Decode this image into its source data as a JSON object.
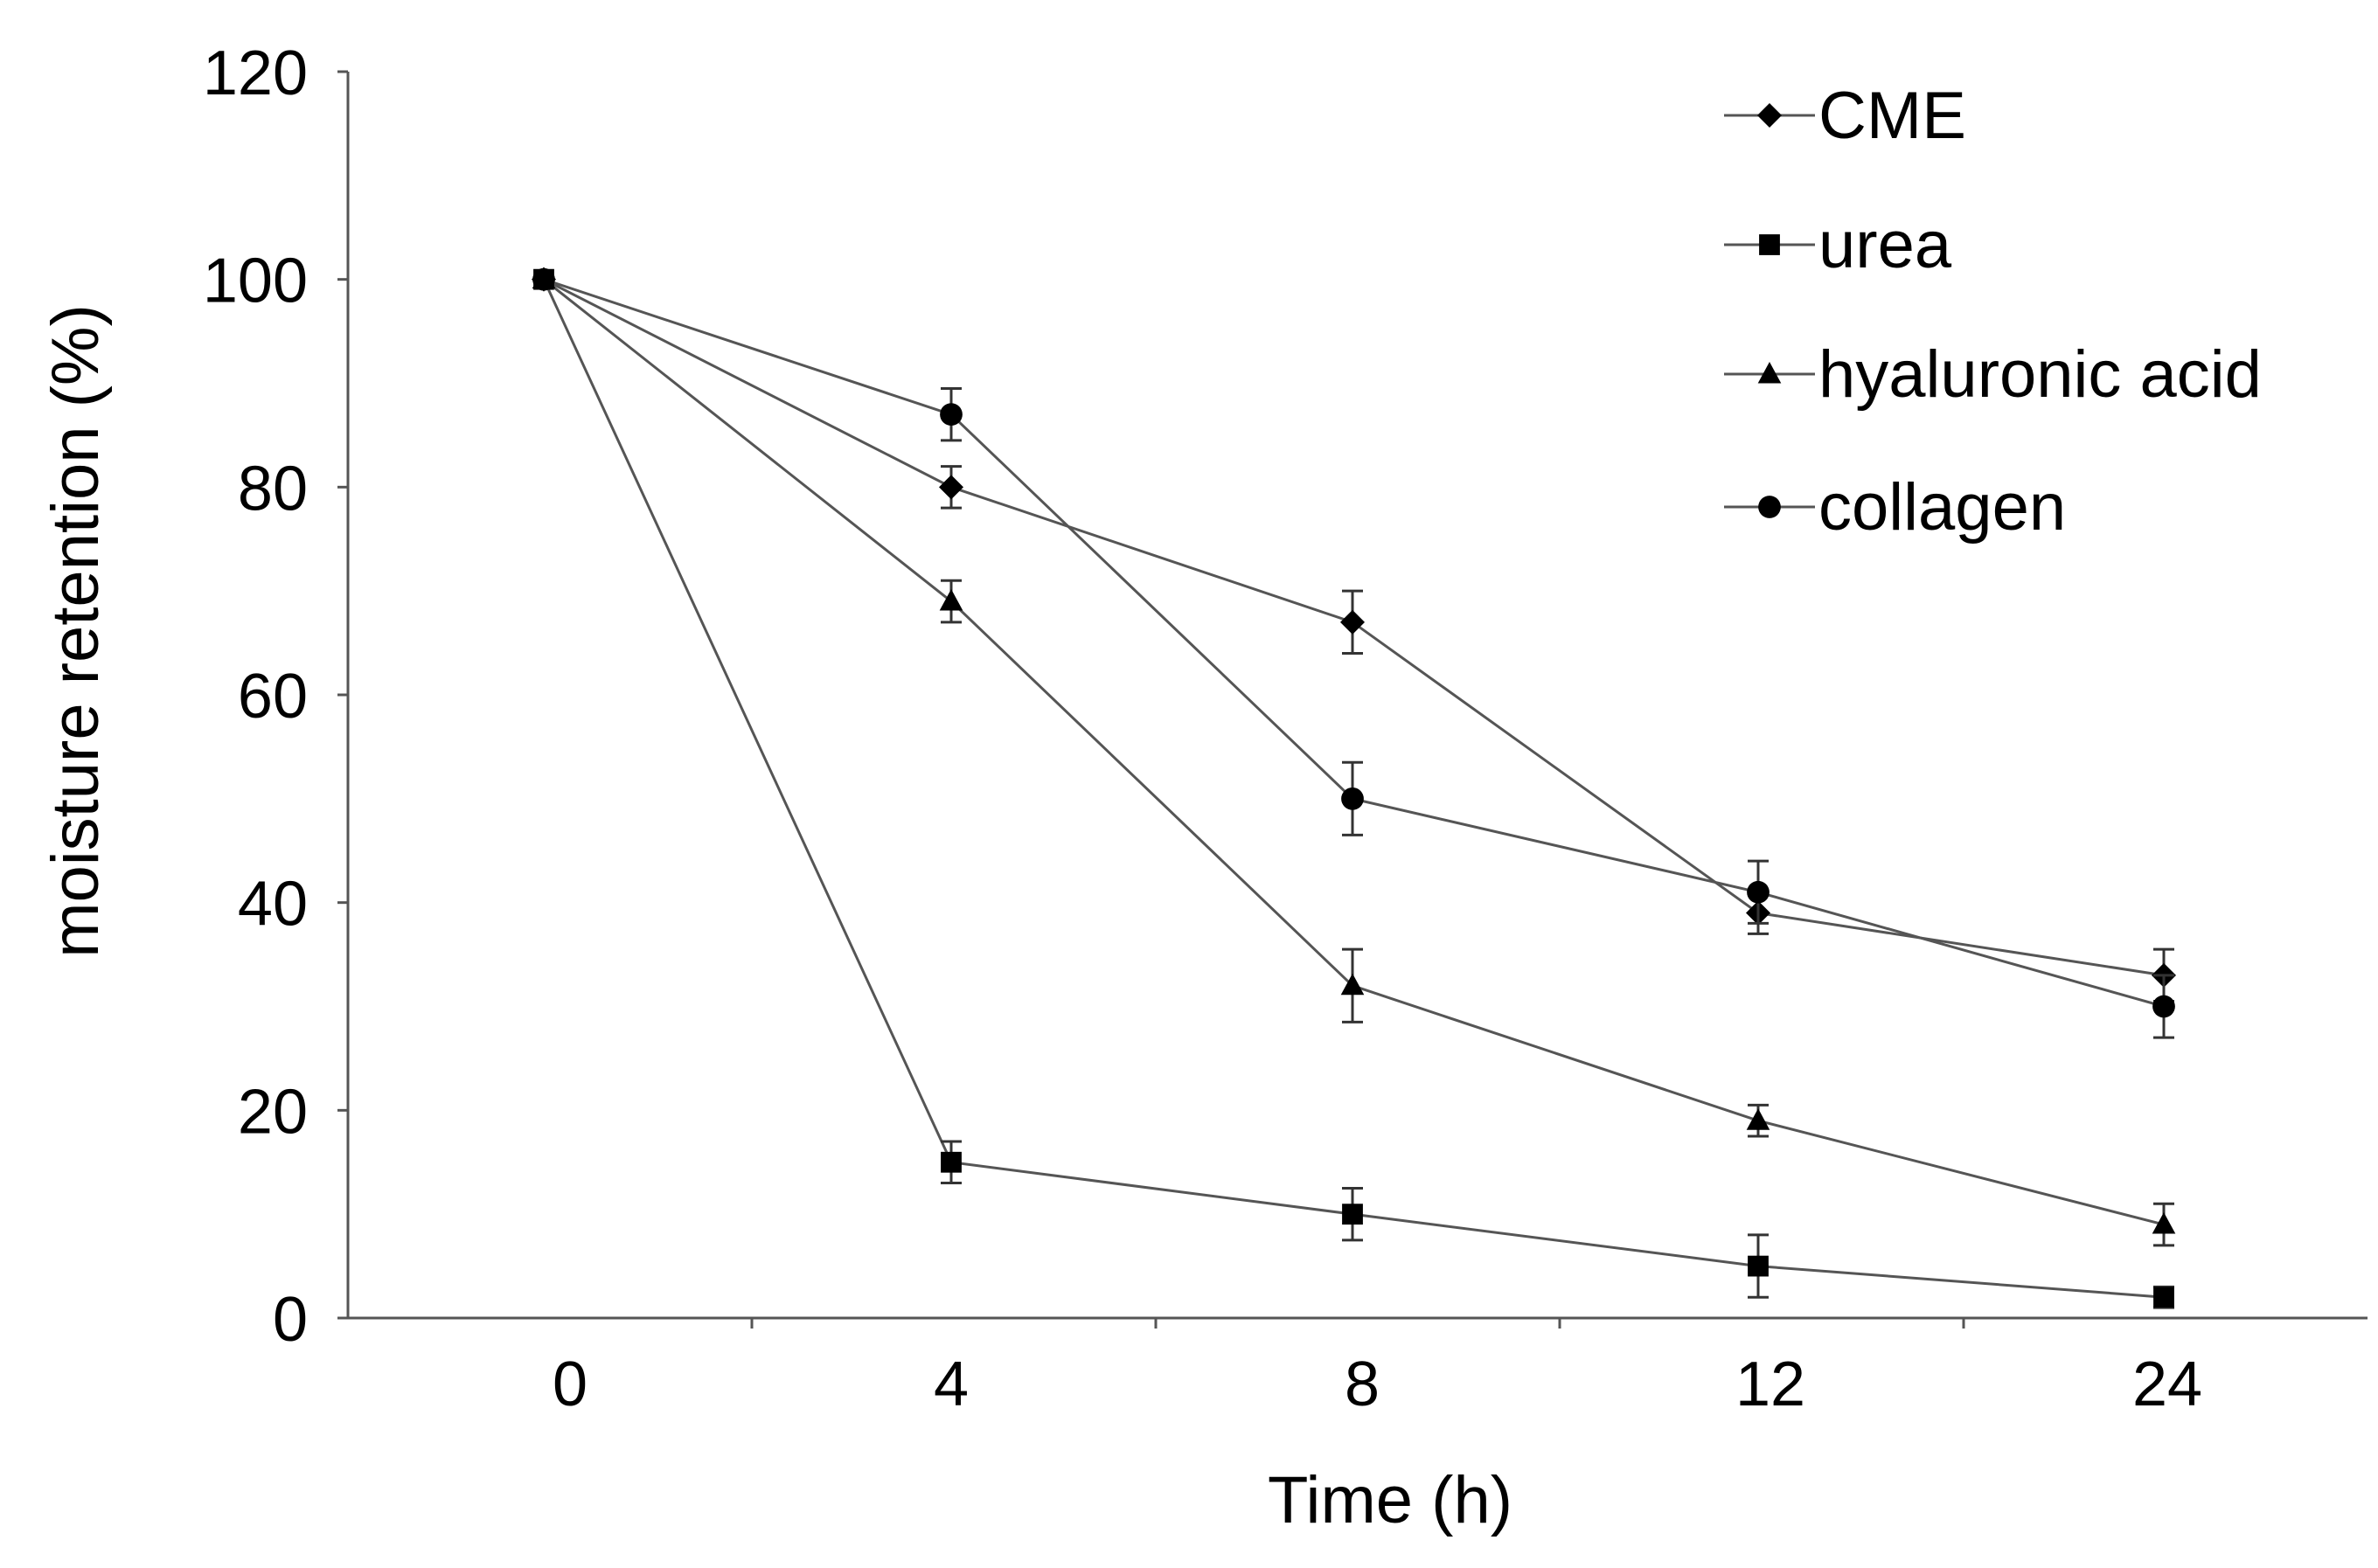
{
  "chart_data": {
    "type": "line",
    "xlabel": "Time (h)",
    "ylabel": "moisture retention (%)",
    "categories": [
      "0",
      "4",
      "8",
      "12",
      "24"
    ],
    "yticks": [
      "0",
      "20",
      "40",
      "60",
      "80",
      "100",
      "120"
    ],
    "ylim": [
      0,
      120
    ],
    "grid": false,
    "legend_position": "top-right",
    "line_color": "#555555",
    "marker_color": "#000000",
    "series": [
      {
        "name": "CME",
        "marker": "diamond",
        "values": [
          100,
          80,
          67,
          39,
          33
        ],
        "errors": [
          0,
          2,
          3,
          2,
          2.5
        ]
      },
      {
        "name": "urea",
        "marker": "square",
        "values": [
          100,
          15,
          10,
          5,
          2
        ],
        "errors": [
          0,
          2,
          2.5,
          3,
          1
        ]
      },
      {
        "name": "hyaluronic acid",
        "marker": "triangle",
        "values": [
          100,
          69,
          32,
          19,
          9
        ],
        "errors": [
          0,
          2,
          3.5,
          1.5,
          2
        ]
      },
      {
        "name": "collagen",
        "marker": "circle",
        "values": [
          100,
          87,
          50,
          41,
          30
        ],
        "errors": [
          0,
          2.5,
          3.5,
          3,
          3
        ]
      }
    ]
  }
}
